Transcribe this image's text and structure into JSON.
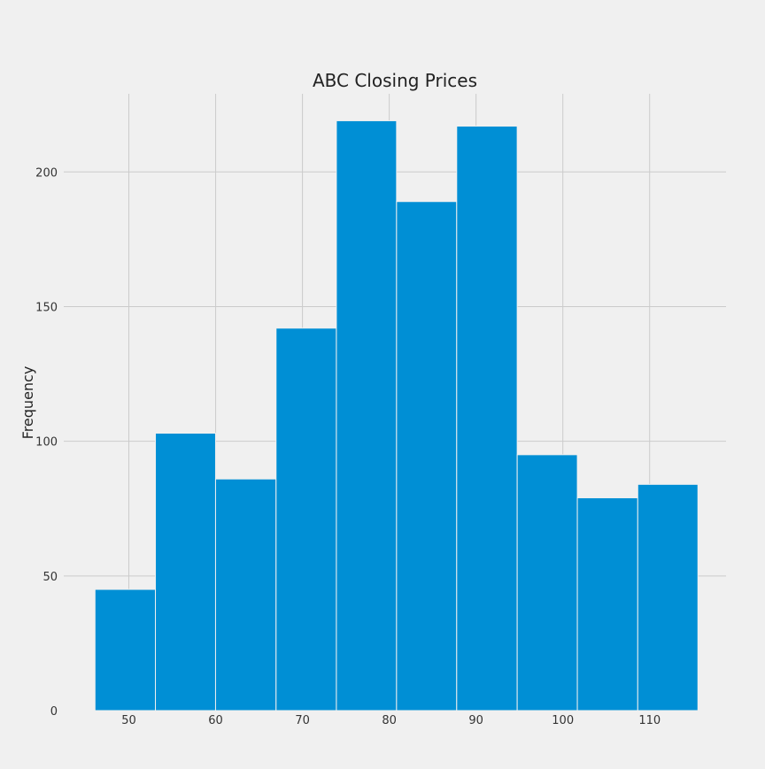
{
  "chart_data": {
    "type": "bar",
    "subtype": "histogram",
    "title": "ABC Closing Prices",
    "xlabel": "",
    "ylabel": "Frequency",
    "xlim": [
      42.5,
      118.8
    ],
    "ylim": [
      0,
      229
    ],
    "x_ticks": [
      50,
      60,
      70,
      80,
      90,
      100,
      110
    ],
    "y_ticks": [
      0,
      50,
      100,
      150,
      200
    ],
    "grid": true,
    "legend": "none",
    "bin_edges": [
      46.1,
      53.06,
      59.99,
      66.96,
      73.91,
      80.84,
      87.77,
      94.74,
      101.67,
      108.63,
      115.56
    ],
    "values": [
      45,
      103,
      86,
      142,
      219,
      189,
      217,
      95,
      79,
      84
    ],
    "bar_color": "#008fd5",
    "background_color": "#f0f0f0",
    "grid_color": "#cbcbcb"
  }
}
